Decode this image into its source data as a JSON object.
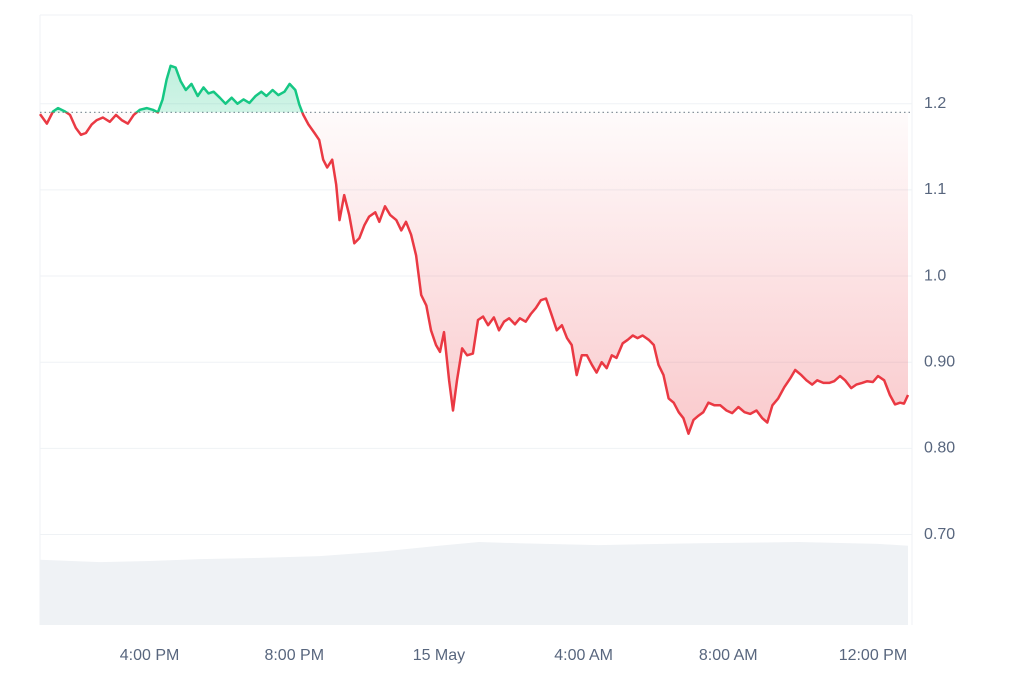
{
  "chart_data": {
    "type": "line",
    "x": [
      12.97,
      13.16,
      13.33,
      13.47,
      13.66,
      13.8,
      13.96,
      14.1,
      14.24,
      14.4,
      14.54,
      14.71,
      14.9,
      15.07,
      15.23,
      15.4,
      15.56,
      15.73,
      15.92,
      16.09,
      16.23,
      16.36,
      16.47,
      16.58,
      16.72,
      16.86,
      17.0,
      17.16,
      17.33,
      17.49,
      17.63,
      17.77,
      17.94,
      18.1,
      18.27,
      18.43,
      18.6,
      18.76,
      18.93,
      19.09,
      19.23,
      19.4,
      19.56,
      19.73,
      19.87,
      20.03,
      20.14,
      20.25,
      20.39,
      20.56,
      20.69,
      20.8,
      20.91,
      21.05,
      21.16,
      21.25,
      21.38,
      21.52,
      21.66,
      21.8,
      21.94,
      22.07,
      22.24,
      22.35,
      22.51,
      22.65,
      22.82,
      22.96,
      23.09,
      23.23,
      23.37,
      23.51,
      23.65,
      23.78,
      23.92,
      24.03,
      24.14,
      24.28,
      24.39,
      24.5,
      24.64,
      24.78,
      24.94,
      25.08,
      25.22,
      25.36,
      25.52,
      25.66,
      25.8,
      25.94,
      26.1,
      26.24,
      26.4,
      26.54,
      26.68,
      26.82,
      26.96,
      27.09,
      27.26,
      27.4,
      27.54,
      27.67,
      27.81,
      27.95,
      28.09,
      28.23,
      28.36,
      28.5,
      28.64,
      28.78,
      28.91,
      29.08,
      29.22,
      29.36,
      29.49,
      29.63,
      29.8,
      29.94,
      30.07,
      30.21,
      30.35,
      30.49,
      30.63,
      30.76,
      30.9,
      31.04,
      31.18,
      31.31,
      31.45,
      31.62,
      31.78,
      31.95,
      32.11,
      32.28,
      32.45,
      32.61,
      32.78,
      32.94,
      33.08,
      33.22,
      33.38,
      33.55,
      33.71,
      33.85,
      34.02,
      34.16,
      34.32,
      34.46,
      34.63,
      34.79,
      34.93,
      35.09,
      35.23,
      35.4,
      35.54,
      35.7,
      35.84,
      36.0,
      36.14,
      36.31,
      36.47,
      36.61,
      36.75,
      36.86,
      36.97
    ],
    "values": [
      1.188,
      1.177,
      1.191,
      1.195,
      1.191,
      1.187,
      1.172,
      1.164,
      1.166,
      1.176,
      1.181,
      1.184,
      1.179,
      1.187,
      1.181,
      1.177,
      1.187,
      1.193,
      1.195,
      1.193,
      1.19,
      1.205,
      1.228,
      1.244,
      1.242,
      1.226,
      1.216,
      1.223,
      1.209,
      1.219,
      1.212,
      1.214,
      1.207,
      1.2,
      1.207,
      1.2,
      1.205,
      1.201,
      1.209,
      1.214,
      1.209,
      1.216,
      1.21,
      1.214,
      1.223,
      1.216,
      1.199,
      1.187,
      1.176,
      1.166,
      1.158,
      1.135,
      1.126,
      1.135,
      1.106,
      1.065,
      1.094,
      1.071,
      1.038,
      1.044,
      1.059,
      1.069,
      1.074,
      1.063,
      1.081,
      1.071,
      1.065,
      1.053,
      1.063,
      1.048,
      1.024,
      0.978,
      0.966,
      0.937,
      0.92,
      0.912,
      0.935,
      0.879,
      0.844,
      0.879,
      0.916,
      0.908,
      0.91,
      0.949,
      0.953,
      0.943,
      0.952,
      0.937,
      0.947,
      0.951,
      0.944,
      0.951,
      0.947,
      0.956,
      0.963,
      0.972,
      0.974,
      0.958,
      0.937,
      0.943,
      0.928,
      0.92,
      0.885,
      0.908,
      0.908,
      0.897,
      0.888,
      0.9,
      0.893,
      0.908,
      0.905,
      0.922,
      0.926,
      0.931,
      0.928,
      0.931,
      0.926,
      0.92,
      0.897,
      0.885,
      0.858,
      0.853,
      0.842,
      0.835,
      0.817,
      0.833,
      0.838,
      0.842,
      0.853,
      0.85,
      0.85,
      0.844,
      0.841,
      0.848,
      0.842,
      0.84,
      0.844,
      0.835,
      0.83,
      0.85,
      0.858,
      0.871,
      0.881,
      0.891,
      0.885,
      0.879,
      0.874,
      0.879,
      0.876,
      0.876,
      0.878,
      0.884,
      0.879,
      0.87,
      0.874,
      0.876,
      0.878,
      0.877,
      0.884,
      0.879,
      0.862,
      0.851,
      0.853,
      0.852,
      0.862
    ],
    "baseline": 1.19,
    "colors": {
      "up": "#16c784",
      "down": "#ea3943"
    },
    "volume_x": [
      12.97,
      14.63,
      16.01,
      17.39,
      19.04,
      20.7,
      22.35,
      24.0,
      25.11,
      26.21,
      28.42,
      31.18,
      33.94,
      36.14,
      36.97
    ],
    "volume_values": [
      10.7,
      10.3,
      10.5,
      10.8,
      11.0,
      11.3,
      12.0,
      13.0,
      13.6,
      13.4,
      13.1,
      13.4,
      13.6,
      13.3,
      13.0
    ],
    "volume_color": "#eff2f5",
    "xlim": [
      12.97,
      37.08
    ],
    "xticks": [
      {
        "value": 16,
        "label": "4:00 PM"
      },
      {
        "value": 20,
        "label": "8:00 PM"
      },
      {
        "value": 24,
        "label": "15 May"
      },
      {
        "value": 28,
        "label": "4:00 AM"
      },
      {
        "value": 32,
        "label": "8:00 AM"
      },
      {
        "value": 36,
        "label": "12:00 PM"
      }
    ],
    "ylim": [
      0.595,
      1.303
    ],
    "yticks": [
      1.2,
      1.1,
      {
        "value": 1,
        "label": "1.0"
      },
      {
        "value": 0.9,
        "label": "0.90"
      },
      {
        "value": 0.8,
        "label": "0.80"
      },
      {
        "value": 0.7,
        "label": "0.70"
      }
    ],
    "y2lim": [
      0,
      100
    ],
    "grid": true
  }
}
